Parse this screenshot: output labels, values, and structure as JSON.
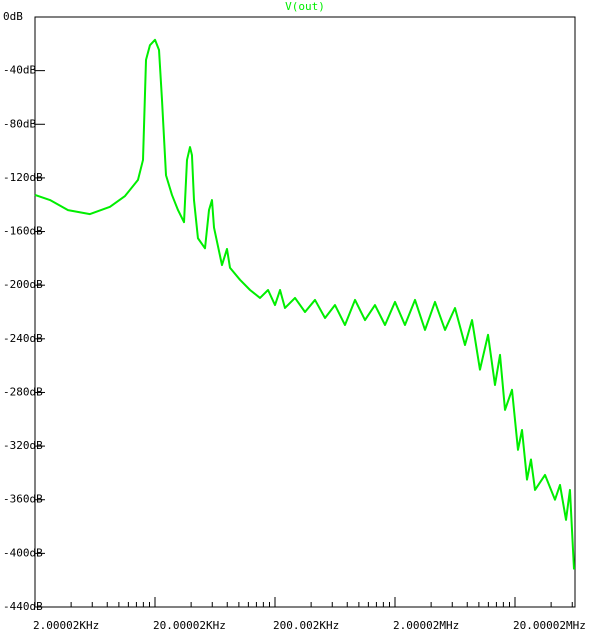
{
  "chart_data": {
    "type": "line",
    "title": "V(out)",
    "color": "#00ee00",
    "xscale": "log",
    "x": [
      2000,
      2667,
      3767,
      5741,
      8433,
      11247,
      14430,
      15887,
      16830,
      18160,
      20000,
      21600,
      22880,
      24700,
      27700,
      31100,
      34900,
      36960,
      39150,
      40650,
      42260,
      45600,
      52200,
      56370,
      59700,
      62060,
      72300,
      79600,
      84330,
      102200,
      123900,
      150000,
      175000,
      200000,
      220300,
      242200,
      293700,
      355700,
      430900,
      522300,
      632500,
      765900,
      929000,
      1125000,
      1362000,
      1651000,
      2000000,
      2421000,
      2937000,
      3557000,
      4308000,
      5223000,
      6325000,
      7659000,
      8770000,
      10210000,
      11920000,
      13620000,
      15000000,
      16510000,
      18880000,
      21180000,
      22880000,
      25180000,
      27170000,
      29370000,
      35570000,
      43090000,
      47430000,
      53220000,
      57400000,
      62060000
    ],
    "values": [
      -132.7,
      -136.5,
      -144,
      -147,
      -141.6,
      -133.5,
      -121.5,
      -106.6,
      -32,
      -21,
      -17,
      -24.6,
      -62,
      -118,
      -132.7,
      -144,
      -153,
      -106.6,
      -97,
      -103,
      -136.5,
      -165,
      -172.5,
      -144,
      -136.5,
      -157,
      -185,
      -173,
      -187,
      -196,
      -203.6,
      -209.5,
      -203.6,
      -214.8,
      -203.6,
      -217,
      -209.5,
      -220,
      -211,
      -224.5,
      -214.8,
      -229.7,
      -211,
      -226,
      -214.8,
      -229.7,
      -212.5,
      -229.7,
      -211,
      -233.4,
      -212.5,
      -233.4,
      -217,
      -244.6,
      -226,
      -263,
      -237,
      -274.4,
      -252,
      -293,
      -278,
      -322.8,
      -308,
      -345,
      -330,
      -352.7,
      -341.5,
      -360,
      -349,
      -375,
      -352.7,
      -412
    ],
    "xlim": [
      2000.02,
      63245600
    ],
    "xticks": [
      {
        "value": 2000.02,
        "label": "2.00002KHz"
      },
      {
        "value": 20000.2,
        "label": "20.00002KHz"
      },
      {
        "value": 200002,
        "label": "200.002KHz"
      },
      {
        "value": 2000020,
        "label": "2.00002MHz"
      },
      {
        "value": 20000200,
        "label": "20.00002MHz"
      }
    ],
    "ylim": [
      -440,
      0
    ],
    "yticks": [
      {
        "value": 0,
        "label": "0dB"
      },
      {
        "value": -40,
        "label": "-40dB"
      },
      {
        "value": -80,
        "label": "-80dB"
      },
      {
        "value": -120,
        "label": "-120dB"
      },
      {
        "value": -160,
        "label": "-160dB"
      },
      {
        "value": -200,
        "label": "-200dB"
      },
      {
        "value": -240,
        "label": "-240dB"
      },
      {
        "value": -280,
        "label": "-280dB"
      },
      {
        "value": -320,
        "label": "-320dB"
      },
      {
        "value": -360,
        "label": "-360dB"
      },
      {
        "value": -400,
        "label": "-400dB"
      },
      {
        "value": -440,
        "label": "-440dB"
      }
    ]
  }
}
